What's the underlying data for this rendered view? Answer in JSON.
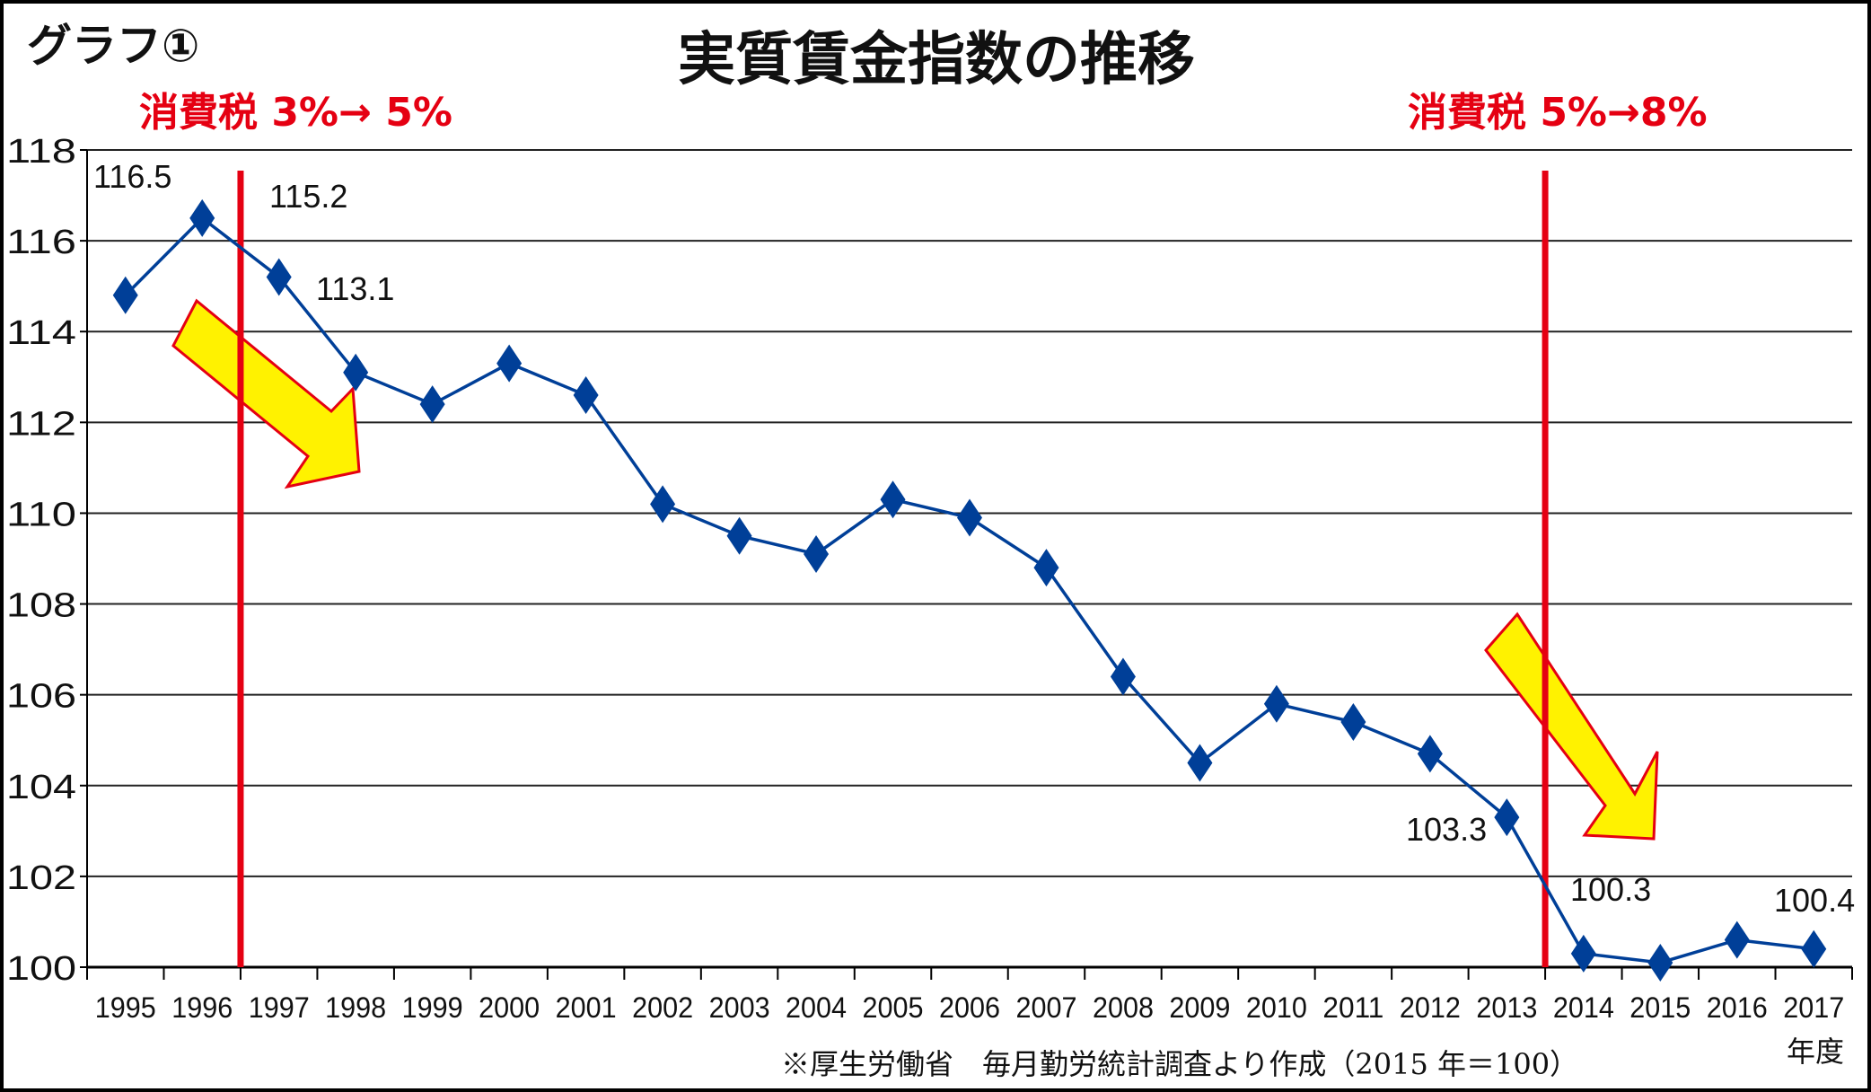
{
  "chart_label": "グラフ①",
  "chart_data": {
    "type": "line",
    "title": "実質賃金指数の推移",
    "xlabel": "年度",
    "ylabel": "",
    "categories": [
      "1995",
      "1996",
      "1997",
      "1998",
      "1999",
      "2000",
      "2001",
      "2002",
      "2003",
      "2004",
      "2005",
      "2006",
      "2007",
      "2008",
      "2009",
      "2010",
      "2011",
      "2012",
      "2013",
      "2014",
      "2015",
      "2016",
      "2017"
    ],
    "series": [
      {
        "name": "実質賃金指数",
        "values": [
          114.8,
          116.5,
          115.2,
          113.1,
          112.4,
          113.3,
          112.6,
          110.2,
          109.5,
          109.1,
          110.3,
          109.9,
          108.8,
          106.4,
          104.5,
          105.8,
          105.4,
          104.7,
          103.3,
          100.3,
          100.1,
          100.6,
          100.4
        ],
        "color": "#003f98"
      }
    ],
    "data_labels": [
      {
        "index": 1,
        "text": "116.5"
      },
      {
        "index": 2,
        "text": "115.2"
      },
      {
        "index": 3,
        "text": "113.1"
      },
      {
        "index": 18,
        "text": "103.3"
      },
      {
        "index": 19,
        "text": "100.3"
      },
      {
        "index": 22,
        "text": "100.4"
      }
    ],
    "ylim": [
      100,
      118
    ],
    "yticks": [
      "100",
      "102",
      "104",
      "106",
      "108",
      "110",
      "112",
      "114",
      "116",
      "118"
    ],
    "grid": true,
    "annotations": [
      {
        "text": "消費税 3%→ 5%",
        "between": [
          "1996",
          "1997"
        ],
        "color": "#e50012"
      },
      {
        "text": "消費税 5%→8%",
        "between": [
          "2013",
          "2014"
        ],
        "color": "#e50012"
      }
    ],
    "source_note": "※厚生労働省　毎月勤労統計調査より作成（2015 年＝100）"
  }
}
